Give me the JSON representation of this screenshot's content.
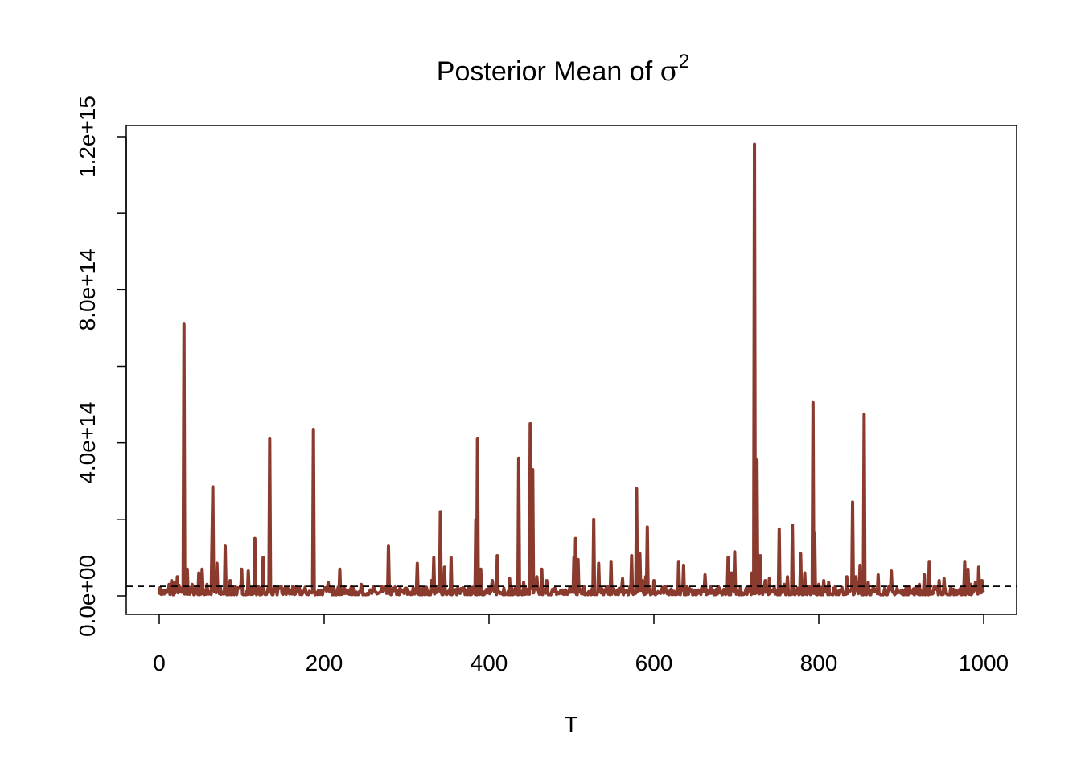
{
  "chart_data": {
    "type": "line",
    "title": "Posterior Mean of",
    "title_symbol": "σ",
    "title_superscript": "2",
    "xlabel": "T",
    "ylabel": "",
    "xlim": [
      0,
      1000
    ],
    "ylim": [
      0,
      1200000000000000.0
    ],
    "x_ticks": [
      0,
      200,
      400,
      600,
      800,
      1000
    ],
    "x_tick_labels": [
      "0",
      "200",
      "400",
      "600",
      "800",
      "1000"
    ],
    "y_ticks": [
      0,
      200000000000000.0,
      400000000000000.0,
      600000000000000.0,
      800000000000000.0,
      1000000000000000.0,
      1200000000000000.0
    ],
    "y_tick_labels": [
      "0.0e+00",
      "",
      "4.0e+14",
      "",
      "8.0e+14",
      "",
      "1.2e+15"
    ],
    "grid": false,
    "baseline": {
      "value": 25000000000000.0,
      "style": "dashed",
      "color": "#000000"
    },
    "series_color": "#8B3A2E",
    "series": [
      {
        "name": "",
        "noise_floor": [
          3000000000000.0,
          25000000000000.0
        ],
        "spikes": [
          [
            12,
            30000000000000.0
          ],
          [
            15,
            40000000000000.0
          ],
          [
            18,
            35000000000000.0
          ],
          [
            22,
            50000000000000.0
          ],
          [
            24,
            28000000000000.0
          ],
          [
            30,
            710000000000000.0
          ],
          [
            34,
            70000000000000.0
          ],
          [
            40,
            30000000000000.0
          ],
          [
            46,
            25000000000000.0
          ],
          [
            48,
            60000000000000.0
          ],
          [
            52,
            70000000000000.0
          ],
          [
            58,
            30000000000000.0
          ],
          [
            64,
            145000000000000.0
          ],
          [
            65,
            285000000000000.0
          ],
          [
            70,
            85000000000000.0
          ],
          [
            74,
            25000000000000.0
          ],
          [
            80,
            130000000000000.0
          ],
          [
            86,
            40000000000000.0
          ],
          [
            92,
            25000000000000.0
          ],
          [
            100,
            70000000000000.0
          ],
          [
            108,
            65000000000000.0
          ],
          [
            116,
            150000000000000.0
          ],
          [
            120,
            25000000000000.0
          ],
          [
            126,
            100000000000000.0
          ],
          [
            132,
            20000000000000.0
          ],
          [
            134,
            410000000000000.0
          ],
          [
            140,
            25000000000000.0
          ],
          [
            148,
            25000000000000.0
          ],
          [
            155,
            20000000000000.0
          ],
          [
            162,
            25000000000000.0
          ],
          [
            187,
            435000000000000.0
          ],
          [
            196,
            15000000000000.0
          ],
          [
            205,
            35000000000000.0
          ],
          [
            212,
            20000000000000.0
          ],
          [
            219,
            70000000000000.0
          ],
          [
            230,
            15000000000000.0
          ],
          [
            245,
            30000000000000.0
          ],
          [
            255,
            10000000000000.0
          ],
          [
            270,
            25000000000000.0
          ],
          [
            278,
            130000000000000.0
          ],
          [
            290,
            15000000000000.0
          ],
          [
            300,
            20000000000000.0
          ],
          [
            313,
            85000000000000.0
          ],
          [
            320,
            20000000000000.0
          ],
          [
            330,
            40000000000000.0
          ],
          [
            333,
            100000000000000.0
          ],
          [
            338,
            25000000000000.0
          ],
          [
            341,
            220000000000000.0
          ],
          [
            346,
            75000000000000.0
          ],
          [
            354,
            100000000000000.0
          ],
          [
            362,
            20000000000000.0
          ],
          [
            372,
            15000000000000.0
          ],
          [
            384,
            200000000000000.0
          ],
          [
            386,
            410000000000000.0
          ],
          [
            390,
            70000000000000.0
          ],
          [
            400,
            20000000000000.0
          ],
          [
            404,
            40000000000000.0
          ],
          [
            410,
            105000000000000.0
          ],
          [
            418,
            20000000000000.0
          ],
          [
            425,
            45000000000000.0
          ],
          [
            432,
            20000000000000.0
          ],
          [
            436,
            360000000000000.0
          ],
          [
            442,
            35000000000000.0
          ],
          [
            450,
            450000000000000.0
          ],
          [
            453,
            330000000000000.0
          ],
          [
            458,
            50000000000000.0
          ],
          [
            464,
            70000000000000.0
          ],
          [
            470,
            40000000000000.0
          ],
          [
            480,
            20000000000000.0
          ],
          [
            490,
            15000000000000.0
          ],
          [
            500,
            20000000000000.0
          ],
          [
            503,
            100000000000000.0
          ],
          [
            505,
            150000000000000.0
          ],
          [
            508,
            95000000000000.0
          ],
          [
            515,
            25000000000000.0
          ],
          [
            527,
            200000000000000.0
          ],
          [
            533,
            85000000000000.0
          ],
          [
            540,
            15000000000000.0
          ],
          [
            548,
            90000000000000.0
          ],
          [
            558,
            20000000000000.0
          ],
          [
            562,
            45000000000000.0
          ],
          [
            573,
            105000000000000.0
          ],
          [
            579,
            280000000000000.0
          ],
          [
            583,
            110000000000000.0
          ],
          [
            586,
            40000000000000.0
          ],
          [
            590,
            50000000000000.0
          ],
          [
            592,
            180000000000000.0
          ],
          [
            600,
            40000000000000.0
          ],
          [
            610,
            20000000000000.0
          ],
          [
            620,
            15000000000000.0
          ],
          [
            630,
            90000000000000.0
          ],
          [
            636,
            80000000000000.0
          ],
          [
            643,
            20000000000000.0
          ],
          [
            650,
            15000000000000.0
          ],
          [
            662,
            55000000000000.0
          ],
          [
            672,
            15000000000000.0
          ],
          [
            680,
            20000000000000.0
          ],
          [
            688,
            25000000000000.0
          ],
          [
            690,
            100000000000000.0
          ],
          [
            694,
            60000000000000.0
          ],
          [
            698,
            115000000000000.0
          ],
          [
            705,
            25000000000000.0
          ],
          [
            712,
            20000000000000.0
          ],
          [
            716,
            25000000000000.0
          ],
          [
            719,
            60000000000000.0
          ],
          [
            722,
            1180000000000000.0
          ],
          [
            725,
            355000000000000.0
          ],
          [
            729,
            105000000000000.0
          ],
          [
            735,
            40000000000000.0
          ],
          [
            740,
            45000000000000.0
          ],
          [
            746,
            25000000000000.0
          ],
          [
            752,
            175000000000000.0
          ],
          [
            758,
            30000000000000.0
          ],
          [
            762,
            50000000000000.0
          ],
          [
            768,
            185000000000000.0
          ],
          [
            774,
            20000000000000.0
          ],
          [
            778,
            110000000000000.0
          ],
          [
            783,
            60000000000000.0
          ],
          [
            788,
            25000000000000.0
          ],
          [
            793,
            505000000000000.0
          ],
          [
            795,
            165000000000000.0
          ],
          [
            800,
            30000000000000.0
          ],
          [
            806,
            40000000000000.0
          ],
          [
            812,
            35000000000000.0
          ],
          [
            818,
            20000000000000.0
          ],
          [
            825,
            15000000000000.0
          ],
          [
            834,
            50000000000000.0
          ],
          [
            841,
            245000000000000.0
          ],
          [
            845,
            50000000000000.0
          ],
          [
            850,
            80000000000000.0
          ],
          [
            855,
            475000000000000.0
          ],
          [
            860,
            35000000000000.0
          ],
          [
            866,
            25000000000000.0
          ],
          [
            872,
            55000000000000.0
          ],
          [
            880,
            20000000000000.0
          ],
          [
            888,
            65000000000000.0
          ],
          [
            895,
            20000000000000.0
          ],
          [
            902,
            15000000000000.0
          ],
          [
            910,
            25000000000000.0
          ],
          [
            918,
            25000000000000.0
          ],
          [
            922,
            30000000000000.0
          ],
          [
            928,
            55000000000000.0
          ],
          [
            934,
            90000000000000.0
          ],
          [
            940,
            25000000000000.0
          ],
          [
            946,
            40000000000000.0
          ],
          [
            952,
            45000000000000.0
          ],
          [
            960,
            20000000000000.0
          ],
          [
            966,
            15000000000000.0
          ],
          [
            972,
            20000000000000.0
          ],
          [
            977,
            90000000000000.0
          ],
          [
            981,
            70000000000000.0
          ],
          [
            984,
            30000000000000.0
          ],
          [
            990,
            35000000000000.0
          ],
          [
            994,
            75000000000000.0
          ],
          [
            998,
            40000000000000.0
          ]
        ]
      }
    ]
  }
}
